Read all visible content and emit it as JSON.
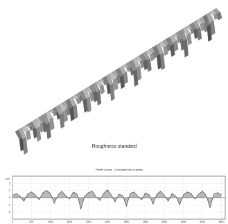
{
  "caption": "Roughness standard",
  "chart_data": {
    "type": "line",
    "title": "Profile curves - Corrupted into a series",
    "y_label": "µm",
    "x": [
      0,
      100,
      200,
      300,
      400,
      500,
      600,
      700,
      800,
      900,
      1000,
      1100,
      1200,
      1300,
      1400,
      1500,
      1600,
      1700,
      1800,
      1900,
      2000,
      2100,
      2200,
      2300,
      2400,
      2500,
      2600,
      2700,
      2800,
      2900,
      3000,
      3100,
      3200,
      3300,
      3400,
      3500,
      3600,
      3700,
      3800,
      3900,
      4000,
      4100,
      4200,
      4300,
      4400,
      4500,
      4600,
      4700,
      4800,
      4900,
      5000,
      5100,
      5200,
      5300,
      5400,
      5500
    ],
    "series": [
      {
        "color": "#333333",
        "fill": "#b8b8b8",
        "values": [
          0.3,
          0.6,
          0.2,
          -0.5,
          0.5,
          0.8,
          0.4,
          -0.3,
          0.7,
          1.0,
          0.6,
          -0.8,
          0.4,
          0.9,
          0.3,
          -0.2,
          0.8,
          0.5,
          -1.6,
          0.2,
          0.7,
          0.9,
          0.1,
          -0.4,
          0.6,
          1.1,
          0.4,
          -0.6,
          0.5,
          0.3,
          -1.2,
          0.6,
          0.8,
          0.2,
          -0.3,
          0.7,
          0.4,
          -0.9,
          0.5,
          0.9,
          0.3,
          -0.5,
          0.6,
          0.2,
          -1.0,
          0.4,
          0.8,
          0.6,
          -0.2,
          0.5,
          0.9,
          0.3,
          -1.4,
          0.5,
          0.7,
          0.4
        ]
      }
    ],
    "xlim": [
      0,
      5600
    ],
    "xticks": [
      0,
      500,
      1000,
      1500,
      2000,
      2500,
      3000,
      3500,
      4000,
      4500,
      5000,
      5500
    ],
    "ylim": [
      -3,
      3
    ],
    "yticks": [
      -2,
      -1,
      0,
      1,
      2
    ],
    "grid": true
  }
}
